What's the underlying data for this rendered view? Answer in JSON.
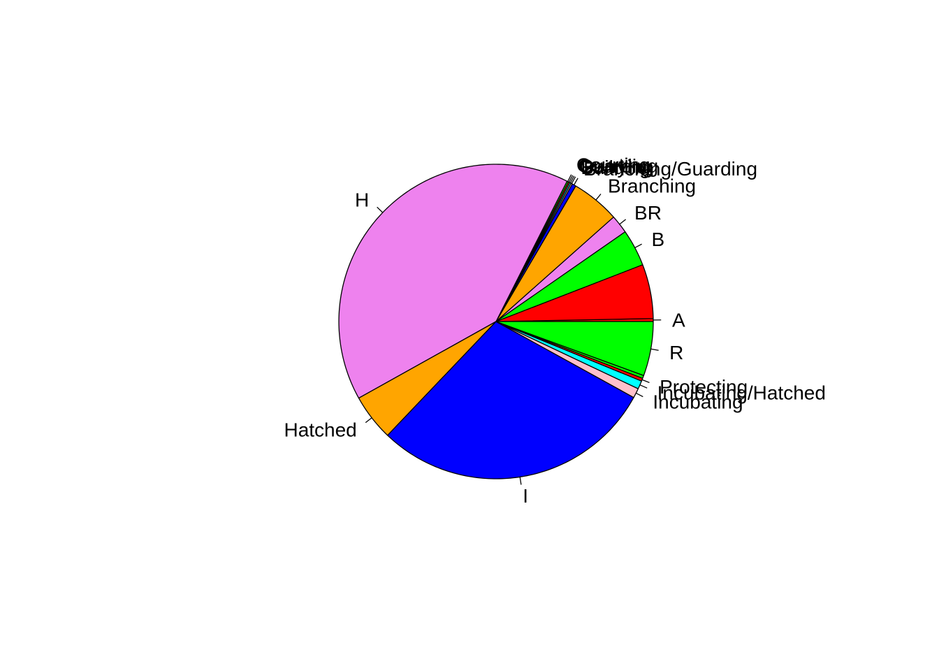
{
  "chart_data": {
    "type": "pie",
    "title": "",
    "direction": "counterclockwise",
    "start_angle_deg": 0,
    "slices": [
      {
        "label": "A",
        "value": 0.3,
        "color": "#FF0000"
      },
      {
        "label": "",
        "value": 5.6,
        "color": "#FF0000"
      },
      {
        "label": "B",
        "value": 3.8,
        "color": "#00FF00"
      },
      {
        "label": "BR",
        "value": 1.9,
        "color": "#EE82EE"
      },
      {
        "label": "Branching",
        "value": 5.0,
        "color": "#FFA500"
      },
      {
        "label": "Branching/Guarding",
        "value": 0.4,
        "color": "#0000FF"
      },
      {
        "label": "Building",
        "value": 0.15,
        "color": "#FFC0CB"
      },
      {
        "label": "Carrying",
        "value": 0.15,
        "color": "#00FFFF"
      },
      {
        "label": "Guarding",
        "value": 0.15,
        "color": "#FF0000"
      },
      {
        "label": "Courting",
        "value": 0.15,
        "color": "#00FF00"
      },
      {
        "label": "H",
        "value": 40.7,
        "color": "#EE82EE"
      },
      {
        "label": "Hatched",
        "value": 4.8,
        "color": "#FFA500"
      },
      {
        "label": "I",
        "value": 29.2,
        "color": "#0000FF"
      },
      {
        "label": "Incubating",
        "value": 1.0,
        "color": "#FFC0CB"
      },
      {
        "label": "Incubating/Hatched",
        "value": 0.85,
        "color": "#00FFFF"
      },
      {
        "label": "Protecting",
        "value": 0.3,
        "color": "#FF0000"
      },
      {
        "label": "",
        "value": 0.3,
        "color": "#00FF00"
      },
      {
        "label": "R",
        "value": 5.6,
        "color": "#00FF00"
      }
    ]
  }
}
